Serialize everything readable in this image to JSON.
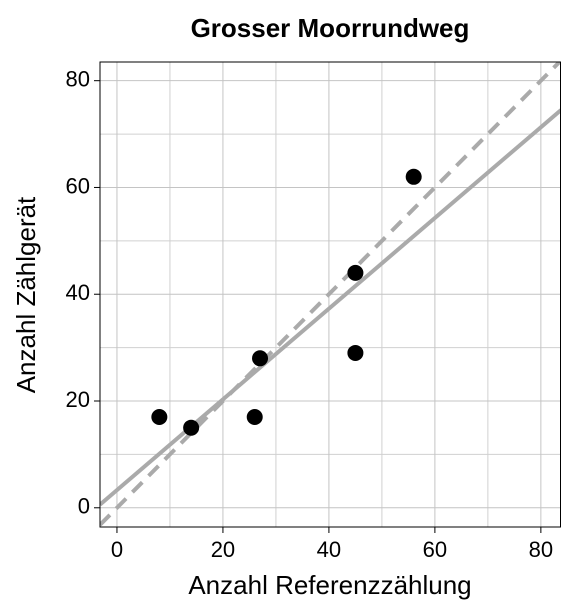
{
  "chart_data": {
    "type": "scatter",
    "title": "Grosser Moorrundweg",
    "x_label": "Anzahl Referenzzählung",
    "y_label": "Anzahl Zählgerät",
    "xlim": [
      -3.2,
      83.8
    ],
    "ylim": [
      -3.6,
      83.5
    ],
    "xticks": [
      0,
      20,
      40,
      60,
      80
    ],
    "yticks": [
      0,
      20,
      40,
      60,
      80
    ],
    "minor_grid": [
      10,
      30,
      50,
      70
    ],
    "grid": true,
    "series": [
      {
        "type": "scatter",
        "color": "#000000",
        "x": [
          8,
          14,
          26,
          27,
          45,
          45,
          56
        ],
        "values": [
          17,
          15,
          17,
          28,
          29,
          44,
          62
        ]
      },
      {
        "type": "line",
        "color": "#aaaaaa",
        "dashed": false,
        "x": [
          -3.2,
          83.8
        ],
        "values": [
          0.6,
          74.5
        ]
      },
      {
        "type": "line",
        "color": "#aaaaaa",
        "dashed": true,
        "x": [
          -3.2,
          83.8
        ],
        "values": [
          -3.2,
          83.8
        ]
      }
    ]
  }
}
